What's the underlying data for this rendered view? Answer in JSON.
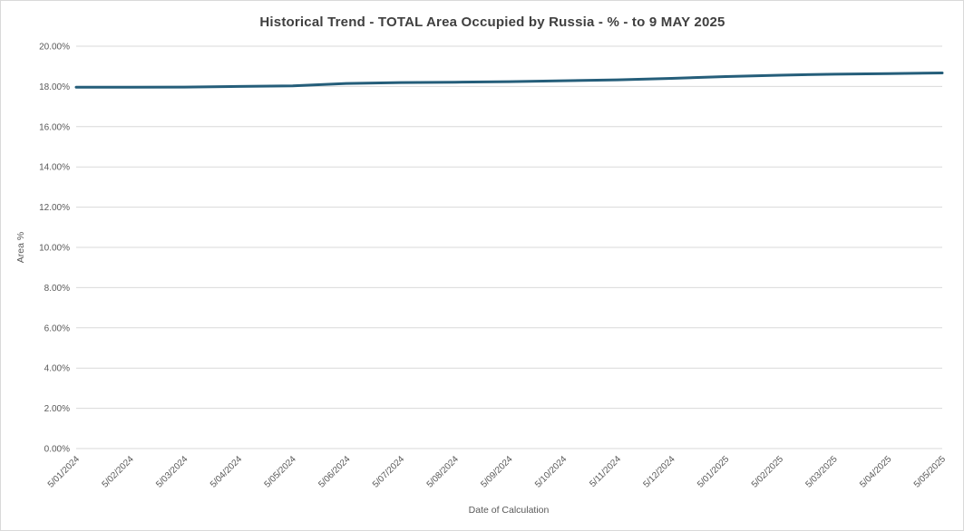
{
  "chart_data": {
    "type": "line",
    "title": "Historical Trend - TOTAL Area Occupied by Russia - % - to 9 MAY 2025",
    "xlabel": "Date of Calculation",
    "ylabel": "Area %",
    "categories": [
      "5/01/2024",
      "5/02/2024",
      "5/03/2024",
      "5/04/2024",
      "5/05/2024",
      "5/06/2024",
      "5/07/2024",
      "5/08/2024",
      "5/09/2024",
      "5/10/2024",
      "5/11/2024",
      "5/12/2024",
      "5/01/2025",
      "5/02/2025",
      "5/03/2025",
      "5/04/2025",
      "5/05/2025"
    ],
    "values": [
      17.96,
      17.96,
      17.97,
      18.0,
      18.03,
      18.15,
      18.19,
      18.21,
      18.24,
      18.28,
      18.33,
      18.4,
      18.49,
      18.56,
      18.61,
      18.64,
      18.67
    ],
    "ylim": [
      0,
      20
    ],
    "ytick_step": 2,
    "ytick_decimals": 2,
    "ytick_suffix": "%",
    "grid": "horizontal",
    "legend": "none",
    "colors": {
      "line": "#255e7a",
      "gridline": "#d9d9d9",
      "tick_text": "#595959",
      "title_text": "#3f3f3f",
      "frame_border": "#d9d9d9",
      "background": "#ffffff"
    }
  }
}
